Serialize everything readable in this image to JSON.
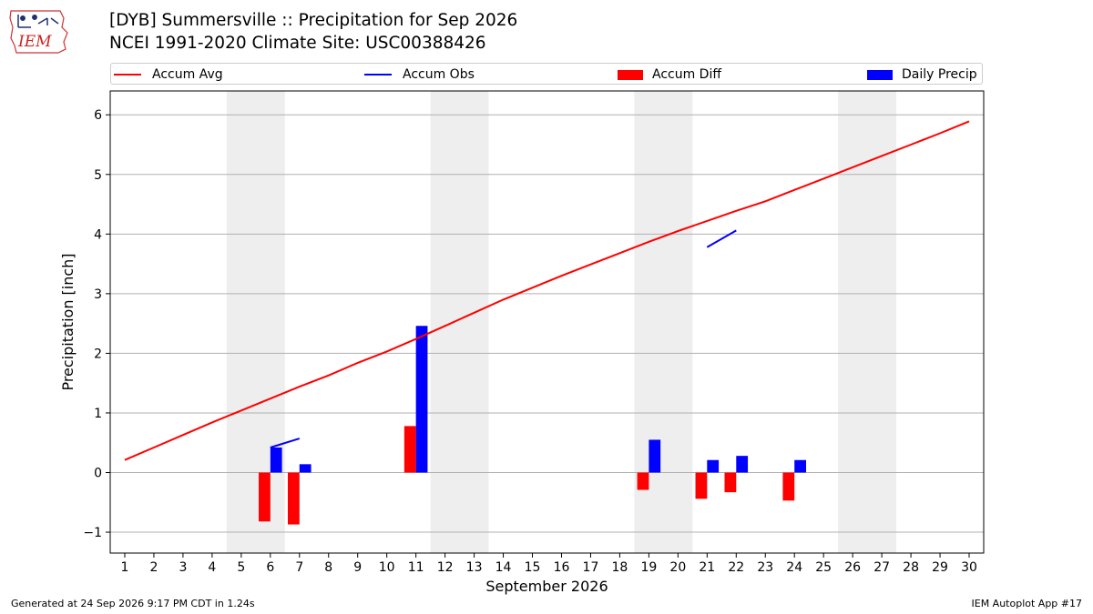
{
  "header": {
    "title_line1": "[DYB] Summersville :: Precipitation for Sep 2026",
    "title_line2": "NCEI 1991-2020 Climate Site: USC00388426",
    "logo_text": "IEM"
  },
  "footer": {
    "generated": "Generated at 24 Sep 2026 9:17 PM CDT in 1.24s",
    "app": "IEM Autoplot App #17"
  },
  "colors": {
    "avg": "#ff0000",
    "obs": "#0000ff",
    "diff": "#ff0000",
    "daily": "#0000ff",
    "weekend_band": "#eeeeee",
    "grid": "#b0b0b0"
  },
  "chart_data": {
    "type": "bar",
    "title": "[DYB] Summersville :: Precipitation for Sep 2026",
    "subtitle": "NCEI 1991-2020 Climate Site: USC00388426",
    "xlabel": "September 2026",
    "ylabel": "Precipitation [inch]",
    "xlim": [
      0.5,
      30.5
    ],
    "ylim": [
      -1.35,
      6.4
    ],
    "yticks": [
      -1,
      0,
      1,
      2,
      3,
      4,
      5,
      6
    ],
    "ytick_labels": [
      "−1",
      "0",
      "1",
      "2",
      "3",
      "4",
      "5",
      "6"
    ],
    "x": [
      1,
      2,
      3,
      4,
      5,
      6,
      7,
      8,
      9,
      10,
      11,
      12,
      13,
      14,
      15,
      16,
      17,
      18,
      19,
      20,
      21,
      22,
      23,
      24,
      25,
      26,
      27,
      28,
      29,
      30
    ],
    "grid": "horizontal",
    "legend_position": "top",
    "shaded_weekends": [
      [
        5,
        6
      ],
      [
        12,
        13
      ],
      [
        19,
        20
      ],
      [
        26,
        27
      ]
    ],
    "series": [
      {
        "name": "Accum Avg",
        "kind": "line",
        "values": [
          0.21,
          0.42,
          0.63,
          0.84,
          1.04,
          1.24,
          1.44,
          1.63,
          1.84,
          2.03,
          2.24,
          2.46,
          2.68,
          2.9,
          3.1,
          3.3,
          3.49,
          3.68,
          3.87,
          4.05,
          4.22,
          4.39,
          4.55,
          4.74,
          4.93,
          5.12,
          5.31,
          5.5,
          5.69,
          5.89
        ]
      },
      {
        "name": "Accum Obs",
        "kind": "line",
        "values": [
          null,
          null,
          null,
          null,
          null,
          0.42,
          0.57,
          null,
          null,
          null,
          null,
          null,
          null,
          null,
          null,
          null,
          null,
          null,
          null,
          null,
          3.78,
          4.06,
          null,
          null,
          null,
          null,
          null,
          null,
          null,
          null
        ]
      },
      {
        "name": "Accum Diff",
        "kind": "bar",
        "values": [
          null,
          null,
          null,
          null,
          null,
          -0.82,
          -0.87,
          null,
          null,
          null,
          0.78,
          null,
          null,
          null,
          null,
          null,
          null,
          null,
          -0.29,
          null,
          -0.44,
          -0.33,
          null,
          -0.47,
          null,
          null,
          null,
          null,
          null,
          null
        ]
      },
      {
        "name": "Daily Precip",
        "kind": "bar",
        "values": [
          null,
          null,
          null,
          null,
          null,
          0.42,
          0.14,
          null,
          null,
          null,
          2.46,
          null,
          null,
          null,
          null,
          null,
          null,
          null,
          0.55,
          null,
          0.21,
          0.28,
          null,
          0.21,
          null,
          null,
          null,
          null,
          null,
          null
        ]
      }
    ]
  }
}
